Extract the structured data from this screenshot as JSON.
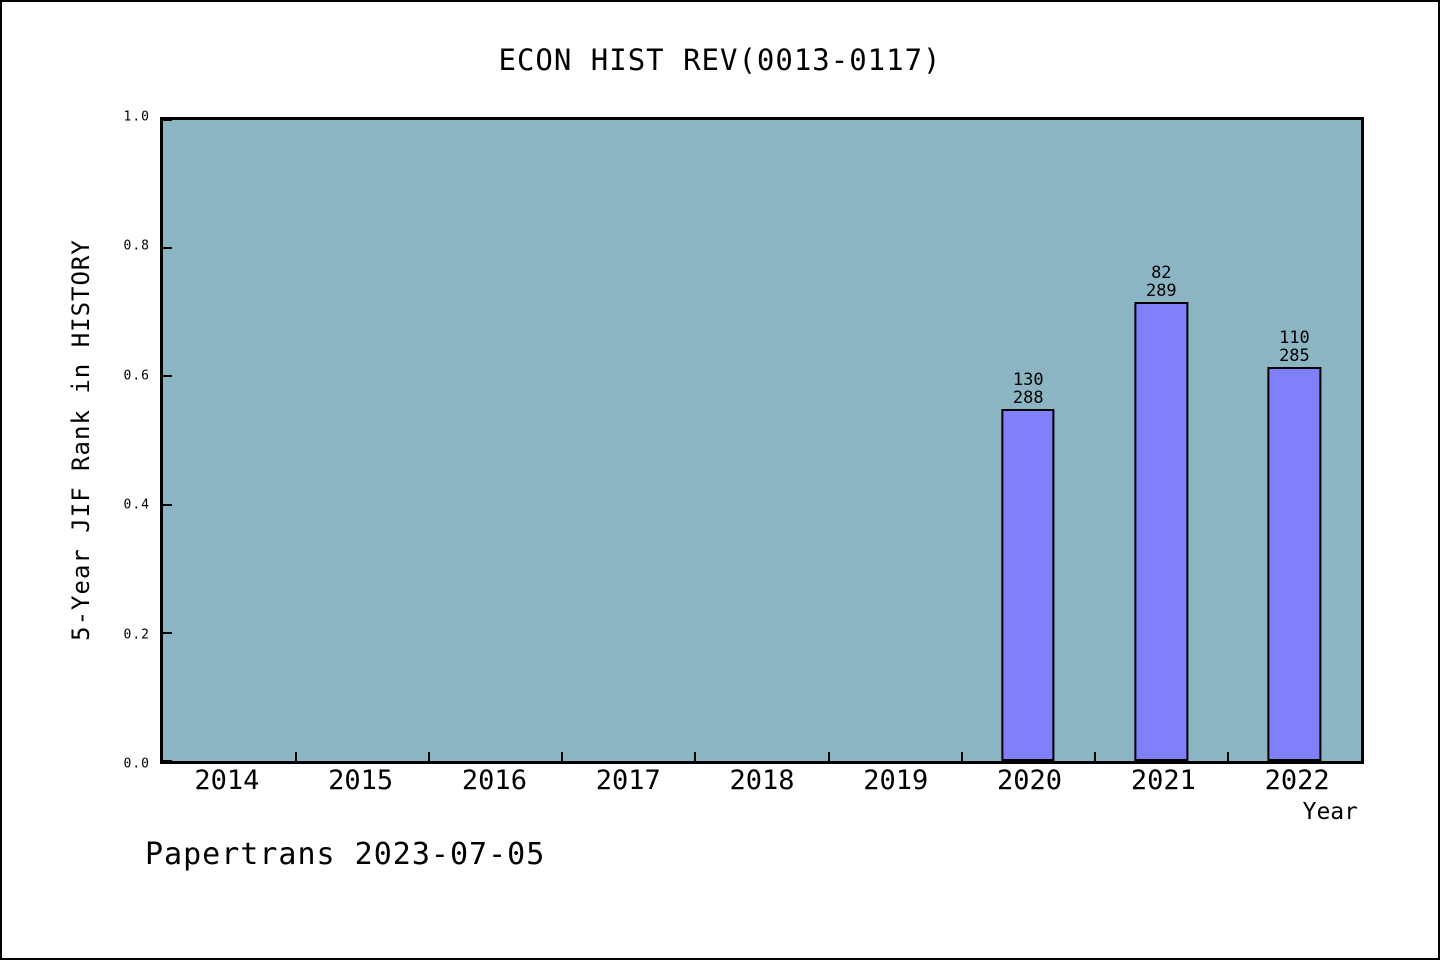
{
  "footer": {
    "text": "Papertrans 2023-07-05"
  },
  "colors": {
    "canvas_background": "#FFFFFF",
    "plot_background": "#8CB5C4",
    "bar_fill": "#8080FA",
    "bar_edge": "#000000",
    "axis_color": "#000000",
    "text_color": "#000000"
  },
  "chart_data": {
    "type": "bar",
    "title": "ECON HIST REV(0013-0117)",
    "xlabel": "Year",
    "ylabel": "5-Year JIF Rank in HISTORY",
    "xlim": [
      2013.5,
      2022.5
    ],
    "ylim": [
      0.0,
      1.0
    ],
    "grid": false,
    "legend": null,
    "x_categories": [
      2014,
      2015,
      2016,
      2017,
      2018,
      2019,
      2020,
      2021,
      2022
    ],
    "x_tick_positions": [
      2014.5,
      2015.5,
      2016.5,
      2017.5,
      2018.5,
      2019.5,
      2020.5,
      2021.5
    ],
    "y_tick_labels": [
      "0.0",
      "0.2",
      "0.4",
      "0.6",
      "0.8",
      "1.0"
    ],
    "bar_width_x_units": 0.4,
    "bars": [
      {
        "x": 2020,
        "rank": 130,
        "total": 288,
        "value": 0.5486,
        "label_lines": [
          "130",
          "288"
        ]
      },
      {
        "x": 2021,
        "rank": 82,
        "total": 289,
        "value": 0.7163,
        "label_lines": [
          "82",
          "289"
        ]
      },
      {
        "x": 2022,
        "rank": 110,
        "total": 285,
        "value": 0.614,
        "label_lines": [
          "110",
          "285"
        ]
      }
    ]
  }
}
